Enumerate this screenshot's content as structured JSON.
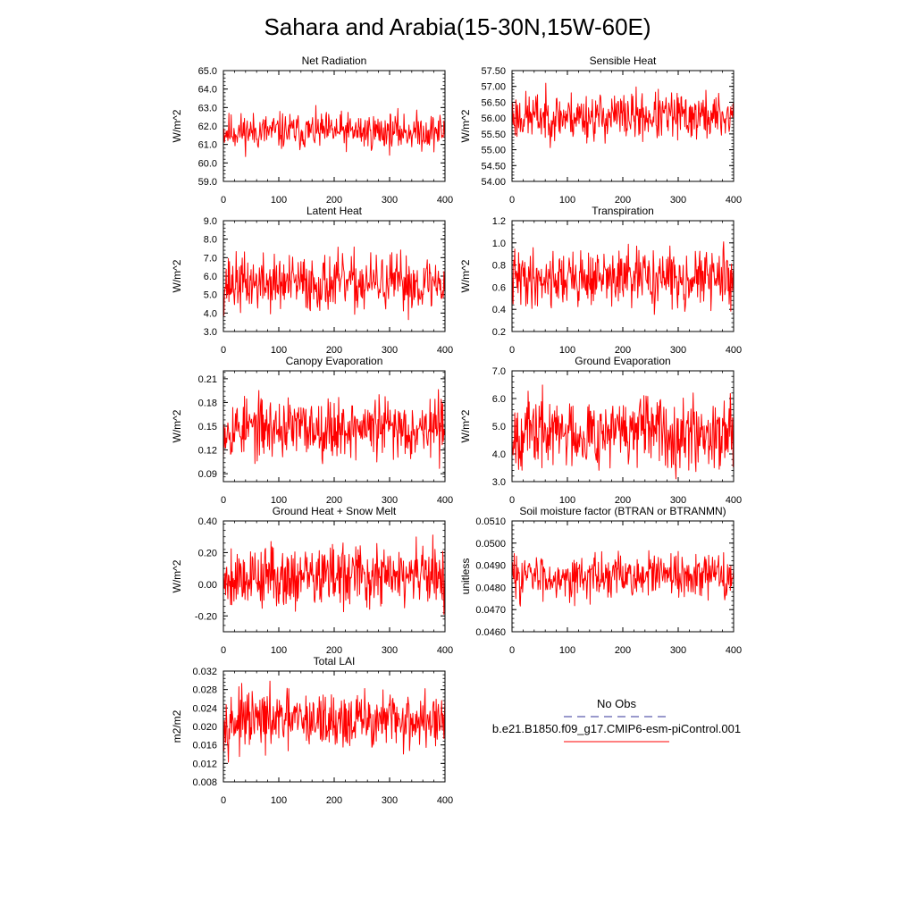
{
  "title": "Sahara and Arabia(15-30N,15W-60E)",
  "legend": {
    "obs_label": "No Obs",
    "model_label": "b.e21.B1850.f09_g17.CMIP6-esm-piControl.001",
    "obs_color": "#333399",
    "model_color": "#ff0000"
  },
  "colors": {
    "series": "#ff0000",
    "axis": "#000000"
  },
  "chart_data": [
    {
      "type": "line",
      "title": "Net Radiation",
      "ylabel": "W/m^2",
      "xlim": [
        0,
        400
      ],
      "ylim": [
        59.0,
        65.0
      ],
      "xticks": [
        "0",
        "100",
        "200",
        "300",
        "400"
      ],
      "yticks": [
        "59.0",
        "60.0",
        "61.0",
        "62.0",
        "63.0",
        "64.0",
        "65.0"
      ],
      "series": [
        {
          "mean": 61.7,
          "amp": 0.55,
          "lo": 59.3,
          "hi": 64.0,
          "seed": 11
        }
      ]
    },
    {
      "type": "line",
      "title": "Sensible Heat",
      "ylabel": "W/m^2",
      "xlim": [
        0,
        400
      ],
      "ylim": [
        54.0,
        57.5
      ],
      "xticks": [
        "0",
        "100",
        "200",
        "300",
        "400"
      ],
      "yticks": [
        "54.00",
        "54.50",
        "55.00",
        "55.50",
        "56.00",
        "56.50",
        "57.00",
        "57.50"
      ],
      "series": [
        {
          "mean": 56.05,
          "amp": 0.42,
          "lo": 54.4,
          "hi": 57.4,
          "seed": 23
        }
      ]
    },
    {
      "type": "line",
      "title": "Latent Heat",
      "ylabel": "W/m^2",
      "xlim": [
        0,
        400
      ],
      "ylim": [
        3.0,
        9.0
      ],
      "xticks": [
        "0",
        "100",
        "200",
        "300",
        "400"
      ],
      "yticks": [
        "3.0",
        "4.0",
        "5.0",
        "6.0",
        "7.0",
        "8.0",
        "9.0"
      ],
      "series": [
        {
          "mean": 5.6,
          "amp": 0.85,
          "lo": 3.6,
          "hi": 8.1,
          "seed": 37
        }
      ]
    },
    {
      "type": "line",
      "title": "Transpiration",
      "ylabel": "W/m^2",
      "xlim": [
        0,
        400
      ],
      "ylim": [
        0.2,
        1.2
      ],
      "xticks": [
        "0",
        "100",
        "200",
        "300",
        "400"
      ],
      "yticks": [
        "0.2",
        "0.4",
        "0.6",
        "0.8",
        "1.0",
        "1.2"
      ],
      "series": [
        {
          "mean": 0.68,
          "amp": 0.14,
          "lo": 0.3,
          "hi": 1.15,
          "seed": 41
        }
      ]
    },
    {
      "type": "line",
      "title": "Canopy Evaporation",
      "ylabel": "W/m^2",
      "xlim": [
        0,
        400
      ],
      "ylim": [
        0.08,
        0.22
      ],
      "xticks": [
        "0",
        "100",
        "200",
        "300",
        "400"
      ],
      "yticks": [
        "0.09",
        "0.12",
        "0.15",
        "0.18",
        "0.21"
      ],
      "series": [
        {
          "mean": 0.148,
          "amp": 0.021,
          "lo": 0.09,
          "hi": 0.213,
          "seed": 53
        }
      ]
    },
    {
      "type": "line",
      "title": "Ground Evaporation",
      "ylabel": "W/m^2",
      "xlim": [
        0,
        400
      ],
      "ylim": [
        3.0,
        7.0
      ],
      "xticks": [
        "0",
        "100",
        "200",
        "300",
        "400"
      ],
      "yticks": [
        "3.0",
        "4.0",
        "5.0",
        "6.0",
        "7.0"
      ],
      "series": [
        {
          "mean": 4.8,
          "amp": 0.7,
          "lo": 3.1,
          "hi": 6.9,
          "seed": 67
        }
      ]
    },
    {
      "type": "line",
      "title": "Ground Heat + Snow Melt",
      "ylabel": "W/m^2",
      "xlim": [
        0,
        400
      ],
      "ylim": [
        -0.3,
        0.4
      ],
      "xticks": [
        "0",
        "100",
        "200",
        "300",
        "400"
      ],
      "yticks": [
        "-0.20",
        "0.00",
        "0.20",
        "0.40"
      ],
      "series": [
        {
          "mean": 0.05,
          "amp": 0.11,
          "lo": -0.27,
          "hi": 0.35,
          "seed": 79
        }
      ]
    },
    {
      "type": "line",
      "title": "Soil moisture factor (BTRAN or BTRANMN)",
      "ylabel": "unitless",
      "xlim": [
        0,
        400
      ],
      "ylim": [
        0.046,
        0.051
      ],
      "xticks": [
        "0",
        "100",
        "200",
        "300",
        "400"
      ],
      "yticks": [
        "0.0460",
        "0.0470",
        "0.0480",
        "0.0490",
        "0.0500",
        "0.0510"
      ],
      "series": [
        {
          "mean": 0.0485,
          "amp": 0.00055,
          "lo": 0.0467,
          "hi": 0.0505,
          "seed": 83
        }
      ]
    },
    {
      "type": "line",
      "title": "Total LAI",
      "ylabel": "m2/m2",
      "xlim": [
        0,
        400
      ],
      "ylim": [
        0.008,
        0.032
      ],
      "xticks": [
        "0",
        "100",
        "200",
        "300",
        "400"
      ],
      "yticks": [
        "0.008",
        "0.012",
        "0.016",
        "0.020",
        "0.024",
        "0.028",
        "0.032"
      ],
      "series": [
        {
          "mean": 0.0212,
          "amp": 0.0034,
          "lo": 0.0102,
          "hi": 0.0318,
          "seed": 97
        }
      ]
    }
  ]
}
